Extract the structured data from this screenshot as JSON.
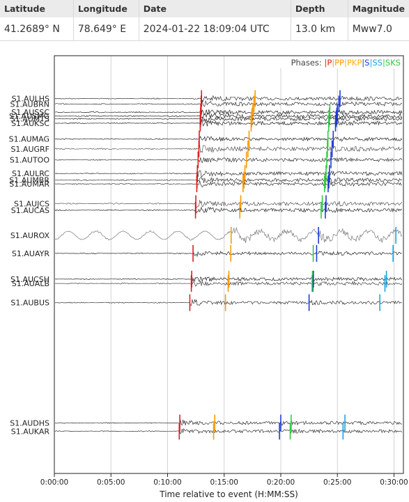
{
  "event_table": {
    "headers": [
      "Latitude",
      "Longitude",
      "Date",
      "Depth",
      "Magnitude"
    ],
    "values": [
      "41.2689° N",
      "78.649° E",
      "2024-01-22 18:09:04 UTC",
      "13.0 km",
      "Mww7.0"
    ]
  },
  "chart_data": {
    "type": "line",
    "xlabel": "Time relative to event (H:MM:SS)",
    "xlim_seconds": [
      0,
      1850
    ],
    "xticks": [
      {
        "value": 0,
        "label": "0:00:00"
      },
      {
        "value": 300,
        "label": "0:05:00"
      },
      {
        "value": 600,
        "label": "0:10:00"
      },
      {
        "value": 900,
        "label": "0:15:00"
      },
      {
        "value": 1200,
        "label": "0:20:00"
      },
      {
        "value": 1500,
        "label": "0:25:00"
      },
      {
        "value": 1800,
        "label": "0:30:00"
      }
    ],
    "vertical_grid": true,
    "legend": {
      "title": "Phases:",
      "placement": "top-right",
      "entries": [
        {
          "label": "P",
          "color": "#e31a1c"
        },
        {
          "label": "PP",
          "color": "#ff9900"
        },
        {
          "label": "PKP",
          "color": "#ffb000"
        },
        {
          "label": "S",
          "color": "#1f3bd6"
        },
        {
          "label": "SS",
          "color": "#1aa3e0"
        },
        {
          "label": "SKS",
          "color": "#2ecc40"
        }
      ]
    },
    "stations": [
      {
        "name": "S1.AULHS",
        "distance": 122.0,
        "color": "#333333",
        "amp": 0.9,
        "arrivals": {
          "P": 780,
          "PP": 1064,
          "S": 1514
        }
      },
      {
        "name": "S1.AUBRN",
        "distance": 121.0,
        "color": "#333333",
        "amp": 0.9,
        "arrivals": {
          "P": 778,
          "PP": 1058,
          "S": 1508
        }
      },
      {
        "name": "S1.AUSSC",
        "distance": 119.5,
        "color": "#222222",
        "amp": 0.9,
        "arrivals": {
          "P": 776,
          "PP": 1052,
          "S": 1500,
          "SKS": 1460
        }
      },
      {
        "name": "S1.AUSMG",
        "distance": 118.8,
        "color": "#222222",
        "amp": 0.9,
        "arrivals": {
          "P": 775,
          "PP": 1048,
          "S": 1497,
          "SKS": 1458
        }
      },
      {
        "name": "S1.AUMTS",
        "distance": 118.3,
        "color": "#222222",
        "amp": 0.9,
        "arrivals": {
          "P": 774,
          "PP": 1046,
          "S": 1494,
          "SKS": 1456
        }
      },
      {
        "name": "S1.AUKSC",
        "distance": 117.5,
        "color": "#222222",
        "amp": 0.9,
        "arrivals": {
          "P": 773,
          "PP": 1043,
          "S": 1490,
          "SKS": 1454
        }
      },
      {
        "name": "S1.AUMAG",
        "distance": 114.6,
        "color": "#222222",
        "amp": 0.8,
        "arrivals": {
          "P": 768,
          "PP": 1032,
          "S": 1478,
          "SKS": 1450
        }
      },
      {
        "name": "S1.AUGRF",
        "distance": 112.8,
        "color": "#555555",
        "amp": 1.1,
        "arrivals": {
          "P": 766,
          "PP": 1026,
          "S": 1472,
          "SKS": 1447
        }
      },
      {
        "name": "S1.AUTOO",
        "distance": 110.8,
        "color": "#333333",
        "amp": 0.9,
        "arrivals": {
          "P": 762,
          "PP": 1018,
          "S": 1466,
          "SKS": 1444
        }
      },
      {
        "name": "S1.AULRC",
        "distance": 108.3,
        "color": "#333333",
        "amp": 0.9,
        "arrivals": {
          "P": 758,
          "PP": 1010,
          "S": 1458,
          "SKS": 1440
        }
      },
      {
        "name": "S1.AUMBR",
        "distance": 107.1,
        "color": "#333333",
        "amp": 0.9,
        "arrivals": {
          "P": 756,
          "PP": 1005,
          "S": 1455,
          "SKS": 1436
        }
      },
      {
        "name": "S1.AUMAR",
        "distance": 106.4,
        "color": "#333333",
        "amp": 0.9,
        "arrivals": {
          "P": 755,
          "PP": 1000,
          "S": 1451,
          "SKS": 1432
        }
      },
      {
        "name": "S1.AUJCS",
        "distance": 102.8,
        "color": "#555555",
        "amp": 1.0,
        "arrivals": {
          "P": 750,
          "PP": 988,
          "S": 1440,
          "SKS": 1420
        }
      },
      {
        "name": "S1.AUCAS",
        "distance": 101.6,
        "color": "#222222",
        "amp": 0.9,
        "arrivals": {
          "P": 748,
          "PP": 983,
          "S": 1436,
          "SKS": 1414
        }
      },
      {
        "name": "S1.AUROX",
        "distance": 97.0,
        "color": "#777777",
        "amp": 1.4,
        "arrivals": {
          "PP": 937,
          "S": 1400,
          "SS": 1810
        }
      },
      {
        "name": "S1.AUAYR",
        "distance": 93.7,
        "color": "#222222",
        "amp": 0.8,
        "arrivals": {
          "P": 735,
          "PP": 935,
          "S": 1390,
          "SKS": 1372,
          "SS": 1795
        }
      },
      {
        "name": "S1.AUCSH",
        "distance": 89.0,
        "color": "#222222",
        "amp": 0.8,
        "arrivals": {
          "P": 728,
          "PP": 925,
          "S": 1373,
          "SKS": 1368,
          "SS": 1760
        }
      },
      {
        "name": "S1.AUALB",
        "distance": 88.2,
        "color": "#444444",
        "amp": 0.8,
        "arrivals": {
          "P": 726,
          "PP": 921,
          "S": 1370,
          "SKS": 1366,
          "SS": 1752
        }
      },
      {
        "name": "S1.AUBUS",
        "distance": 84.7,
        "color": "#333333",
        "amp": 0.8,
        "arrivals": {
          "P": 718,
          "PP": 907,
          "S": 1350,
          "SS": 1725
        }
      },
      {
        "name": "S1.AUDHS",
        "distance": 62.7,
        "color": "#333333",
        "amp": 0.8,
        "arrivals": {
          "P": 665,
          "PP": 850,
          "S": 1200,
          "SKS": 1255,
          "SS": 1540
        }
      },
      {
        "name": "S1.AUKAR",
        "distance": 61.2,
        "color": "#333333",
        "amp": 0.8,
        "arrivals": {
          "P": 662,
          "PP": 844,
          "S": 1193,
          "SKS": 1250,
          "SS": 1530
        }
      }
    ]
  }
}
